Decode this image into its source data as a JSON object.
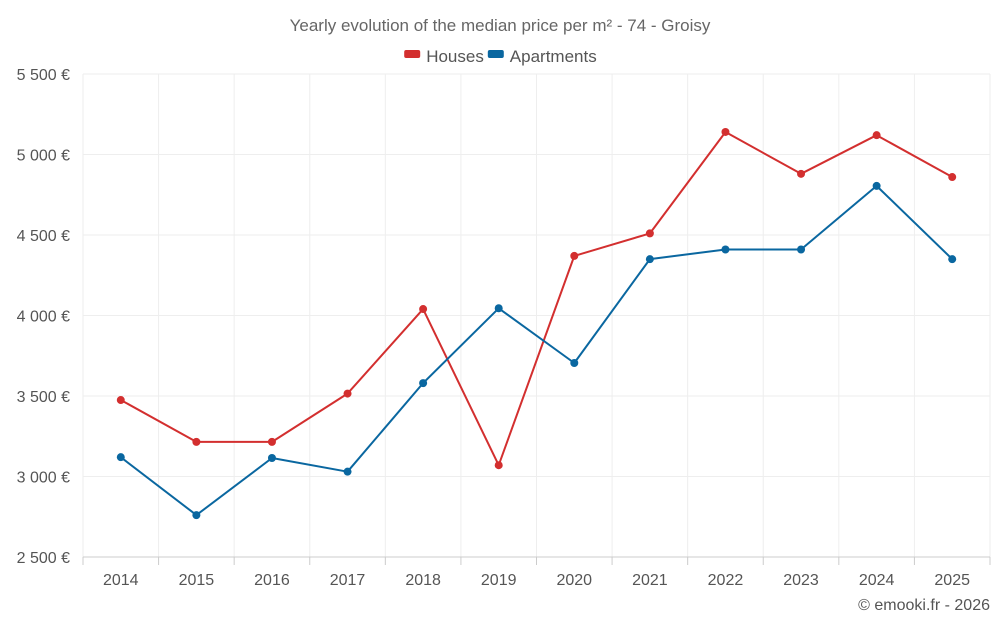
{
  "chart_data": {
    "type": "line",
    "title": "Yearly evolution of the median price per m² - 74 - Groisy",
    "categories": [
      "2014",
      "2015",
      "2016",
      "2017",
      "2018",
      "2019",
      "2020",
      "2021",
      "2022",
      "2023",
      "2024",
      "2025"
    ],
    "series": [
      {
        "name": "Houses",
        "color": "#d32f2f",
        "values": [
          3475,
          3215,
          3215,
          3515,
          4040,
          3070,
          4370,
          4510,
          5140,
          4880,
          5120,
          4860
        ]
      },
      {
        "name": "Apartments",
        "color": "#0a67a0",
        "values": [
          3120,
          2760,
          3115,
          3030,
          3580,
          4045,
          3705,
          4350,
          4410,
          4410,
          4805,
          4350
        ]
      }
    ],
    "ylim": [
      2500,
      5500
    ],
    "yticks": [
      2500,
      3000,
      3500,
      4000,
      4500,
      5000,
      5500
    ],
    "ytick_labels": [
      "2 500 €",
      "3 000 €",
      "3 500 €",
      "4 000 €",
      "4 500 €",
      "5 000 €",
      "5 500 €"
    ],
    "legend_position": "top-center",
    "grid": true
  },
  "credit": "© emooki.fr - 2026"
}
